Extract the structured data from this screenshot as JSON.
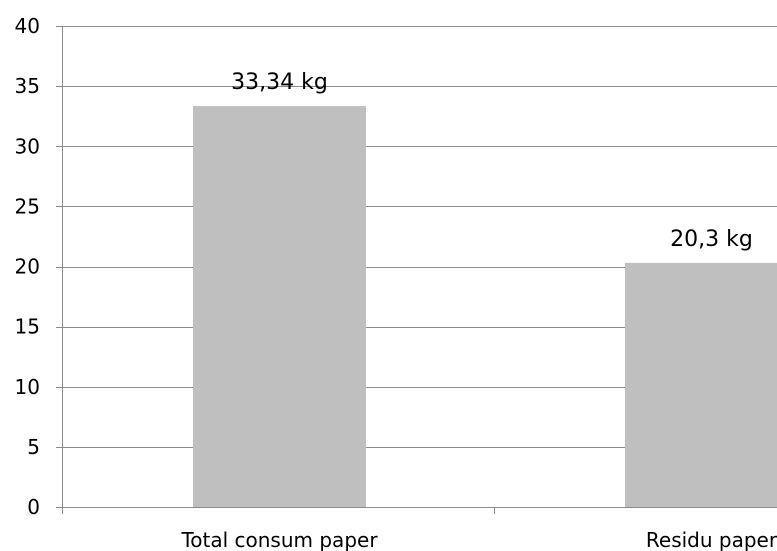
{
  "chart_data": {
    "type": "bar",
    "categories": [
      "Total consum paper",
      "Residu paper"
    ],
    "values": [
      33.34,
      20.3
    ],
    "data_labels": [
      "33,34 kg",
      "20,3 kg"
    ],
    "yticks": [
      "0",
      "5",
      "10",
      "15",
      "20",
      "25",
      "30",
      "35",
      "40"
    ],
    "ylim": [
      0,
      40
    ],
    "grid": true,
    "legend": "none",
    "colors": {
      "bar": "#bfbfbf",
      "grid": "#8c8c8c",
      "axis": "#8c8c8c"
    }
  }
}
